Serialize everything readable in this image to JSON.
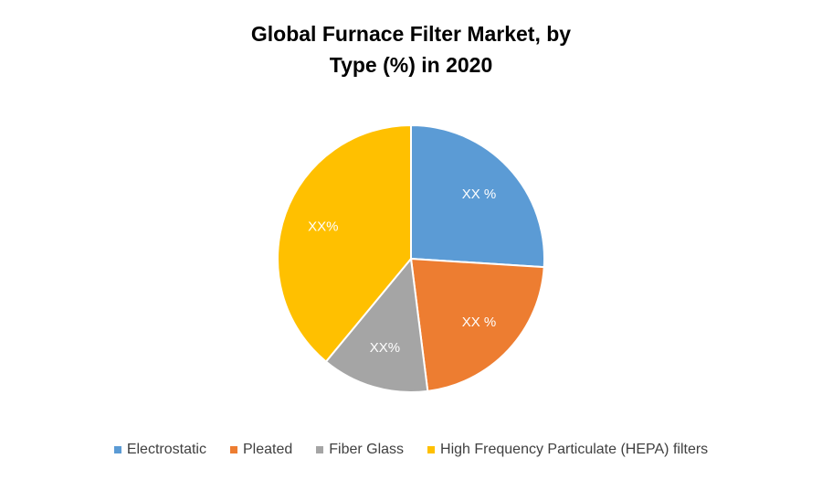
{
  "chart_data": {
    "type": "pie",
    "title": "Global Furnace Filter Market, by Type (%) in 2020",
    "categories": [
      "Electrostatic",
      "Pleated",
      "Fiber Glass",
      "High Frequency Particulate (HEPA) filters"
    ],
    "values": [
      26,
      22,
      13,
      39
    ],
    "value_labels": [
      "XX %",
      "XX %",
      "XX%",
      "XX%"
    ],
    "colors": [
      "#5b9bd5",
      "#ed7d31",
      "#a5a5a5",
      "#ffc000"
    ],
    "legend": "bottom"
  }
}
